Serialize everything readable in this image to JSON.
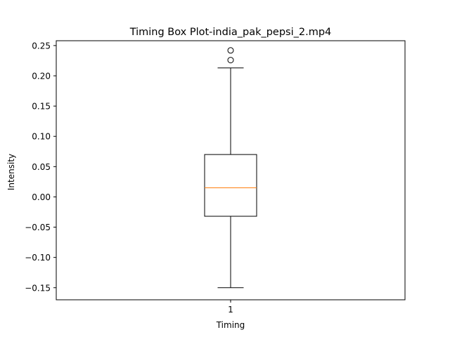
{
  "chart_data": {
    "type": "box",
    "title": "Timing Box Plot-india_pak_pepsi_2.mp4",
    "xlabel": "Timing",
    "ylabel": "Intensity",
    "categories": [
      "1"
    ],
    "ylim": [
      -0.17,
      0.258
    ],
    "yticks": [
      -0.15,
      -0.1,
      -0.05,
      0.0,
      0.05,
      0.1,
      0.15,
      0.2,
      0.25
    ],
    "ytick_labels": [
      "−0.15",
      "−0.10",
      "−0.05",
      "0.00",
      "0.05",
      "0.10",
      "0.15",
      "0.20",
      "0.25"
    ],
    "box": {
      "whisker_low": -0.15,
      "q1": -0.032,
      "median": 0.015,
      "q3": 0.07,
      "whisker_high": 0.213,
      "outliers": [
        0.226,
        0.242
      ]
    },
    "grid": false,
    "colors": {
      "median": "#ff7f0e",
      "box": "#000000"
    }
  }
}
